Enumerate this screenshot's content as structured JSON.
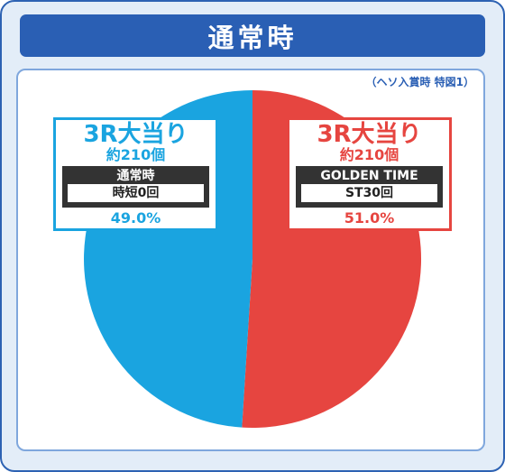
{
  "header": {
    "title": "通常時"
  },
  "note": "（ヘソ入賞時 特図1）",
  "colors": {
    "blue": "#1aa4e0",
    "red": "#e64540",
    "frame": "#2a5fb4"
  },
  "cards": {
    "left": {
      "title": "3R大当り",
      "sub": "約210個",
      "box_title": "通常時",
      "box_value": "時短0回",
      "percent": "49.0%"
    },
    "right": {
      "title": "3R大当り",
      "sub": "約210個",
      "box_title": "GOLDEN TIME",
      "box_value": "ST30回",
      "percent": "51.0%"
    }
  },
  "chart_data": {
    "type": "pie",
    "title": "通常時",
    "slices": [
      {
        "label": "3R大当り 約210個 GOLDEN TIME ST30回",
        "value": 51.0,
        "color": "#e64540"
      },
      {
        "label": "3R大当り 約210個 通常時 時短0回",
        "value": 49.0,
        "color": "#1aa4e0"
      }
    ],
    "start": "top",
    "direction": "clockwise"
  }
}
